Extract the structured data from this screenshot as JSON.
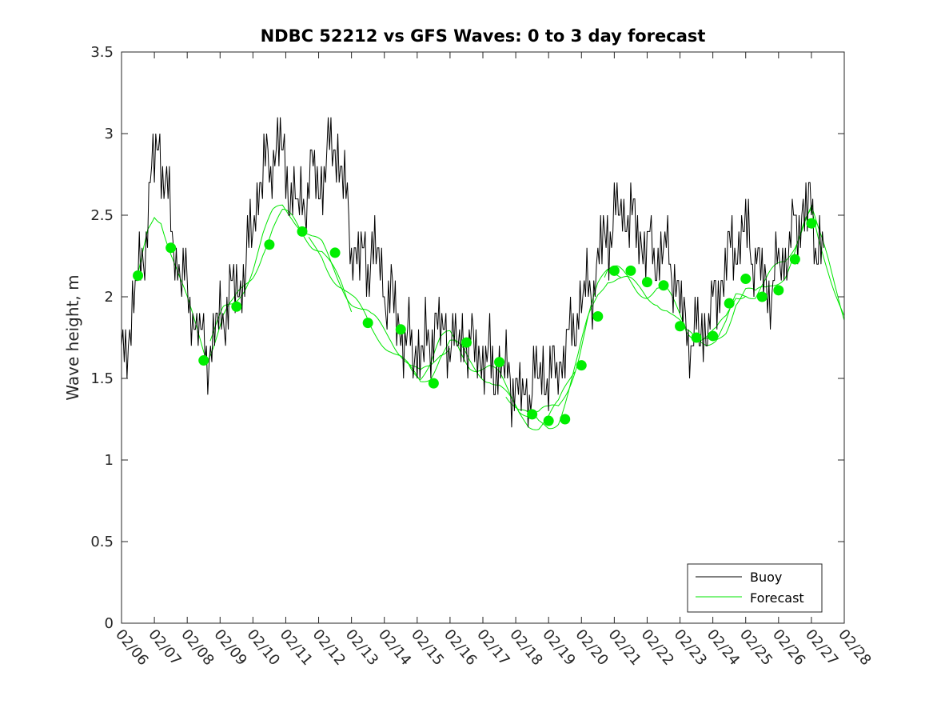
{
  "chart_data": {
    "type": "line",
    "title": "NDBC 52212 vs GFS Waves: 0 to 3 day forecast",
    "xlabel": "",
    "ylabel": "Wave height, m",
    "xlim": [
      0,
      22
    ],
    "ylim": [
      0,
      3.5
    ],
    "grid": false,
    "legend_position": "bottom-right",
    "x_tick_labels": [
      "02/06",
      "02/07",
      "02/08",
      "02/09",
      "02/10",
      "02/11",
      "02/12",
      "02/13",
      "02/14",
      "02/15",
      "02/16",
      "02/17",
      "02/18",
      "02/19",
      "02/20",
      "02/21",
      "02/22",
      "02/23",
      "02/24",
      "02/25",
      "02/26",
      "02/27",
      "02/28"
    ],
    "y_ticks": [
      0,
      0.5,
      1,
      1.5,
      2,
      2.5,
      3,
      3.5
    ],
    "y_tick_labels": [
      "0",
      "0.5",
      "1",
      "1.5",
      "2",
      "2.5",
      "3",
      "3.5"
    ],
    "colors": {
      "buoy": "#000000",
      "forecast": "#00e600",
      "marker": "#00ee00",
      "axis": "#262626"
    },
    "buoy_anchors": [
      [
        0,
        1.6
      ],
      [
        0.3,
        1.85
      ],
      [
        0.5,
        2.1
      ],
      [
        0.7,
        2.35
      ],
      [
        0.85,
        2.6
      ],
      [
        1.0,
        2.85
      ],
      [
        1.15,
        2.95
      ],
      [
        1.3,
        2.75
      ],
      [
        1.45,
        2.5
      ],
      [
        1.6,
        2.3
      ],
      [
        1.8,
        2.15
      ],
      [
        2.0,
        2.05
      ],
      [
        2.2,
        1.9
      ],
      [
        2.4,
        1.75
      ],
      [
        2.6,
        1.68
      ],
      [
        2.8,
        1.72
      ],
      [
        3.0,
        1.85
      ],
      [
        3.2,
        1.95
      ],
      [
        3.4,
        2.05
      ],
      [
        3.6,
        2.08
      ],
      [
        3.8,
        2.2
      ],
      [
        4.0,
        2.45
      ],
      [
        4.2,
        2.65
      ],
      [
        4.4,
        2.8
      ],
      [
        4.6,
        2.85
      ],
      [
        4.8,
        2.95
      ],
      [
        5.0,
        2.8
      ],
      [
        5.2,
        2.6
      ],
      [
        5.4,
        2.55
      ],
      [
        5.6,
        2.65
      ],
      [
        5.8,
        2.75
      ],
      [
        6.0,
        2.7
      ],
      [
        6.2,
        2.75
      ],
      [
        6.4,
        2.95
      ],
      [
        6.55,
        2.9
      ],
      [
        6.7,
        2.75
      ],
      [
        6.85,
        2.55
      ],
      [
        7.0,
        2.35
      ],
      [
        7.2,
        2.2
      ],
      [
        7.4,
        2.2
      ],
      [
        7.6,
        2.3
      ],
      [
        7.8,
        2.2
      ],
      [
        8.0,
        2.05
      ],
      [
        8.2,
        1.95
      ],
      [
        8.4,
        1.9
      ],
      [
        8.6,
        1.75
      ],
      [
        8.8,
        1.7
      ],
      [
        9.0,
        1.65
      ],
      [
        9.2,
        1.68
      ],
      [
        9.4,
        1.75
      ],
      [
        9.6,
        1.85
      ],
      [
        9.8,
        1.72
      ],
      [
        10.0,
        1.8
      ],
      [
        10.2,
        1.68
      ],
      [
        10.4,
        1.8
      ],
      [
        10.6,
        1.7
      ],
      [
        10.8,
        1.65
      ],
      [
        11.0,
        1.62
      ],
      [
        11.2,
        1.6
      ],
      [
        11.4,
        1.58
      ],
      [
        11.6,
        1.55
      ],
      [
        11.8,
        1.5
      ],
      [
        12.0,
        1.45
      ],
      [
        12.2,
        1.35
      ],
      [
        12.4,
        1.42
      ],
      [
        12.6,
        1.5
      ],
      [
        12.8,
        1.55
      ],
      [
        13.0,
        1.5
      ],
      [
        13.2,
        1.55
      ],
      [
        13.4,
        1.6
      ],
      [
        13.6,
        1.7
      ],
      [
        13.8,
        1.85
      ],
      [
        14.0,
        1.95
      ],
      [
        14.2,
        2.05
      ],
      [
        14.4,
        2.1
      ],
      [
        14.6,
        2.3
      ],
      [
        14.8,
        2.4
      ],
      [
        15.0,
        2.5
      ],
      [
        15.2,
        2.55
      ],
      [
        15.4,
        2.5
      ],
      [
        15.6,
        2.45
      ],
      [
        15.8,
        2.35
      ],
      [
        16.0,
        2.3
      ],
      [
        16.2,
        2.3
      ],
      [
        16.4,
        2.28
      ],
      [
        16.6,
        2.3
      ],
      [
        16.8,
        2.15
      ],
      [
        17.0,
        1.95
      ],
      [
        17.2,
        1.8
      ],
      [
        17.4,
        1.75
      ],
      [
        17.6,
        1.78
      ],
      [
        17.8,
        1.82
      ],
      [
        18.0,
        1.9
      ],
      [
        18.2,
        2.05
      ],
      [
        18.4,
        2.2
      ],
      [
        18.6,
        2.3
      ],
      [
        18.8,
        2.35
      ],
      [
        19.0,
        2.4
      ],
      [
        19.2,
        2.3
      ],
      [
        19.4,
        2.2
      ],
      [
        19.6,
        2.1
      ],
      [
        19.8,
        2.05
      ],
      [
        20.0,
        2.2
      ],
      [
        20.2,
        2.25
      ],
      [
        20.4,
        2.35
      ],
      [
        20.6,
        2.45
      ],
      [
        20.8,
        2.55
      ],
      [
        21.0,
        2.5
      ],
      [
        21.2,
        2.35
      ],
      [
        21.4,
        2.25
      ]
    ],
    "forecast_anchors": [
      [
        0.5,
        2.1
      ],
      [
        0.8,
        2.45
      ],
      [
        1.0,
        2.57
      ],
      [
        1.2,
        2.55
      ],
      [
        1.5,
        2.32
      ],
      [
        1.8,
        2.1
      ],
      [
        2.1,
        1.92
      ],
      [
        2.4,
        1.75
      ],
      [
        2.6,
        1.63
      ],
      [
        2.8,
        1.72
      ],
      [
        3.1,
        1.88
      ],
      [
        3.4,
        1.96
      ],
      [
        3.7,
        2.08
      ],
      [
        4.0,
        2.2
      ],
      [
        4.3,
        2.35
      ],
      [
        4.6,
        2.45
      ],
      [
        4.9,
        2.5
      ],
      [
        5.2,
        2.46
      ],
      [
        5.5,
        2.4
      ],
      [
        5.8,
        2.34
      ],
      [
        6.1,
        2.3
      ],
      [
        6.4,
        2.2
      ],
      [
        6.7,
        2.1
      ],
      [
        7.0,
        1.98
      ],
      [
        7.3,
        1.88
      ],
      [
        7.6,
        1.8
      ],
      [
        7.9,
        1.76
      ],
      [
        8.2,
        1.72
      ],
      [
        8.5,
        1.66
      ],
      [
        8.8,
        1.58
      ],
      [
        9.1,
        1.52
      ],
      [
        9.4,
        1.56
      ],
      [
        9.7,
        1.66
      ],
      [
        10.0,
        1.7
      ],
      [
        10.3,
        1.65
      ],
      [
        10.6,
        1.6
      ],
      [
        10.9,
        1.58
      ],
      [
        11.2,
        1.56
      ],
      [
        11.5,
        1.5
      ],
      [
        11.8,
        1.4
      ],
      [
        12.1,
        1.3
      ],
      [
        12.4,
        1.24
      ],
      [
        12.7,
        1.22
      ],
      [
        13.0,
        1.25
      ],
      [
        13.3,
        1.32
      ],
      [
        13.6,
        1.48
      ],
      [
        13.9,
        1.65
      ],
      [
        14.2,
        1.86
      ],
      [
        14.5,
        2.02
      ],
      [
        14.8,
        2.12
      ],
      [
        15.1,
        2.12
      ],
      [
        15.4,
        2.1
      ],
      [
        15.7,
        2.07
      ],
      [
        16.0,
        2.05
      ],
      [
        16.3,
        2.05
      ],
      [
        16.6,
        1.98
      ],
      [
        16.9,
        1.86
      ],
      [
        17.2,
        1.75
      ],
      [
        17.5,
        1.73
      ],
      [
        17.8,
        1.74
      ],
      [
        18.1,
        1.77
      ],
      [
        18.4,
        1.86
      ],
      [
        18.7,
        2.02
      ],
      [
        19.0,
        2.05
      ],
      [
        19.3,
        1.98
      ],
      [
        19.6,
        2.02
      ],
      [
        19.9,
        2.1
      ],
      [
        20.2,
        2.18
      ],
      [
        20.5,
        2.32
      ],
      [
        20.8,
        2.48
      ],
      [
        21.0,
        2.55
      ],
      [
        21.2,
        2.4
      ],
      [
        21.5,
        2.22
      ],
      [
        21.8,
        2.02
      ],
      [
        22.0,
        1.88
      ]
    ],
    "forecast_markers": {
      "x": [
        0.5,
        1.5,
        2.5,
        3.5,
        4.5,
        5.5,
        6.5,
        7.5,
        8.5,
        9.5,
        10.5,
        11.5,
        12.5,
        13.0,
        13.5,
        14.0,
        14.5,
        15.0,
        15.5,
        16.0,
        16.5,
        17.0,
        17.5,
        18.0,
        18.5,
        19.0,
        19.5,
        20.0,
        20.5,
        21.0
      ],
      "y": [
        2.13,
        2.3,
        1.61,
        1.94,
        2.32,
        2.4,
        2.27,
        1.84,
        1.8,
        1.47,
        1.72,
        1.6,
        1.28,
        1.24,
        1.25,
        1.58,
        1.88,
        2.16,
        2.16,
        2.09,
        2.07,
        1.82,
        1.75,
        1.76,
        1.96,
        2.11,
        2.0,
        2.04,
        2.23,
        2.45
      ]
    },
    "legend": [
      "Buoy",
      "Forecast"
    ]
  }
}
